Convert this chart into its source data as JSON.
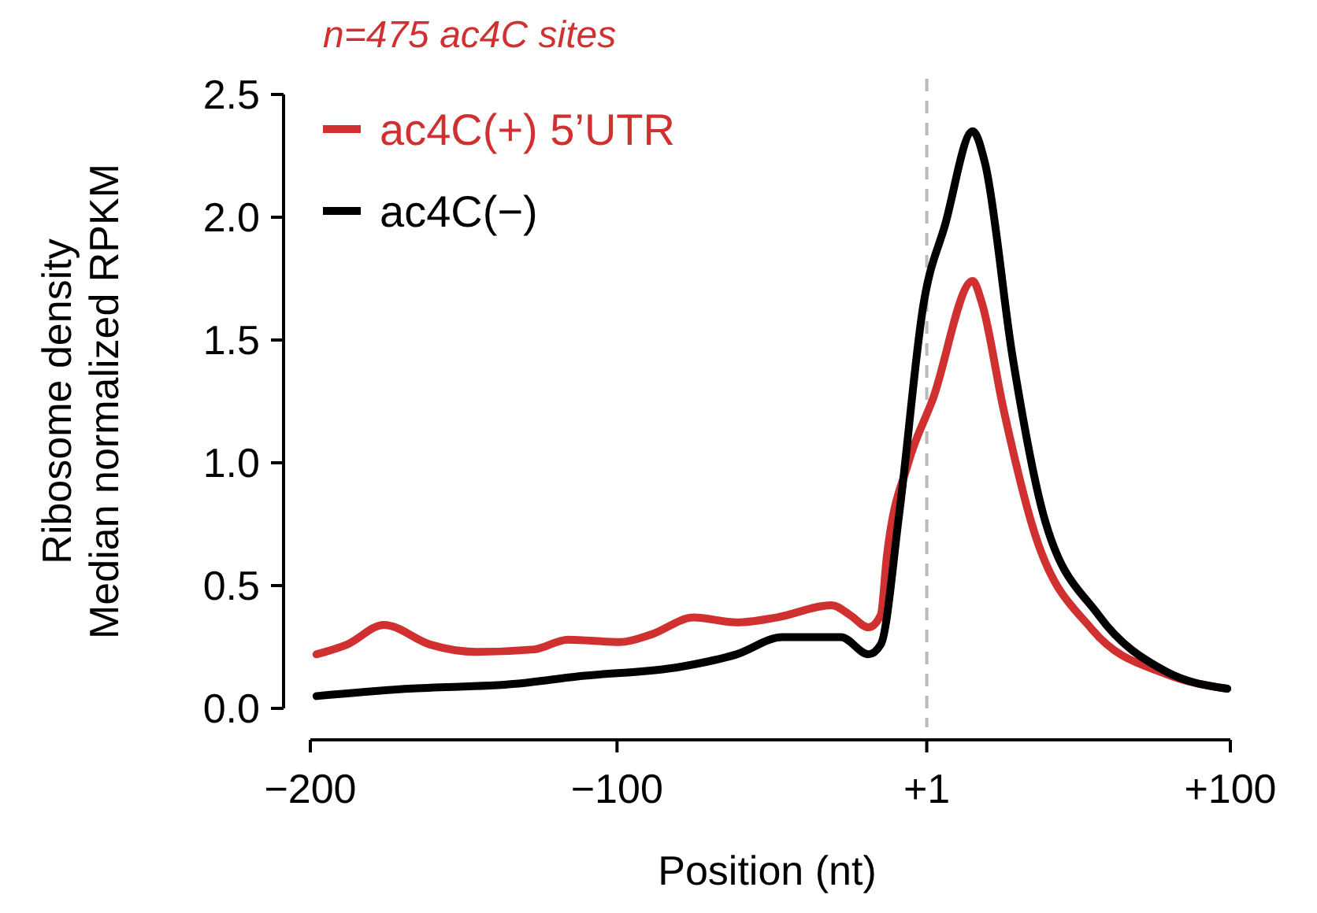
{
  "chart_data": {
    "type": "line",
    "title": "n=475 ac4C sites",
    "xlabel": "Position (nt)",
    "ylabel": "Ribosome density\nMedian normalized RPKM",
    "xlim": [
      -200,
      100
    ],
    "xticks": [
      {
        "value": -200,
        "label": "−200"
      },
      {
        "value": -100,
        "label": "−100"
      },
      {
        "value": 1,
        "label": "+1"
      },
      {
        "value": 100,
        "label": "+100"
      }
    ],
    "ylim": [
      0,
      2.5
    ],
    "yticks": [
      {
        "value": 0,
        "label": "0.0"
      },
      {
        "value": 0.5,
        "label": "0.5"
      },
      {
        "value": 1,
        "label": "1.0"
      },
      {
        "value": 1.5,
        "label": "1.5"
      },
      {
        "value": 2,
        "label": "2.0"
      },
      {
        "value": 2.5,
        "label": "2.5"
      }
    ],
    "legend": "top left",
    "grid": false,
    "line_style": "solid",
    "ref_lines": [
      {
        "axis": "x",
        "value": 1,
        "color": "#bbbbbb",
        "line_style": "dashed"
      }
    ],
    "series": [
      {
        "name": "ac4C(+) 5’UTR",
        "color": "#d03030",
        "x": [
          -198,
          -188,
          -176,
          -161,
          -146,
          -127,
          -116,
          -99,
          -89,
          -75,
          -61,
          -48,
          -30,
          -24,
          -18,
          -14,
          -12,
          -5,
          3,
          16,
          19,
          26,
          36,
          55,
          79,
          99
        ],
        "values": [
          0.22,
          0.26,
          0.34,
          0.26,
          0.23,
          0.24,
          0.28,
          0.27,
          0.3,
          0.37,
          0.35,
          0.37,
          0.42,
          0.38,
          0.33,
          0.38,
          0.62,
          1.0,
          1.26,
          1.74,
          1.65,
          1.22,
          0.72,
          0.32,
          0.14,
          0.08
        ]
      },
      {
        "name": "ac4C(−)",
        "color": "#000000",
        "x": [
          -198,
          -168,
          -133,
          -113,
          -79,
          -61,
          -46,
          -27,
          -18,
          -14,
          -8,
          0,
          7,
          16,
          20,
          29,
          39,
          57,
          79,
          99
        ],
        "values": [
          0.05,
          0.08,
          0.1,
          0.13,
          0.17,
          0.22,
          0.29,
          0.29,
          0.22,
          0.26,
          0.79,
          1.65,
          1.97,
          2.35,
          2.22,
          1.43,
          0.79,
          0.38,
          0.15,
          0.08
        ]
      }
    ]
  }
}
